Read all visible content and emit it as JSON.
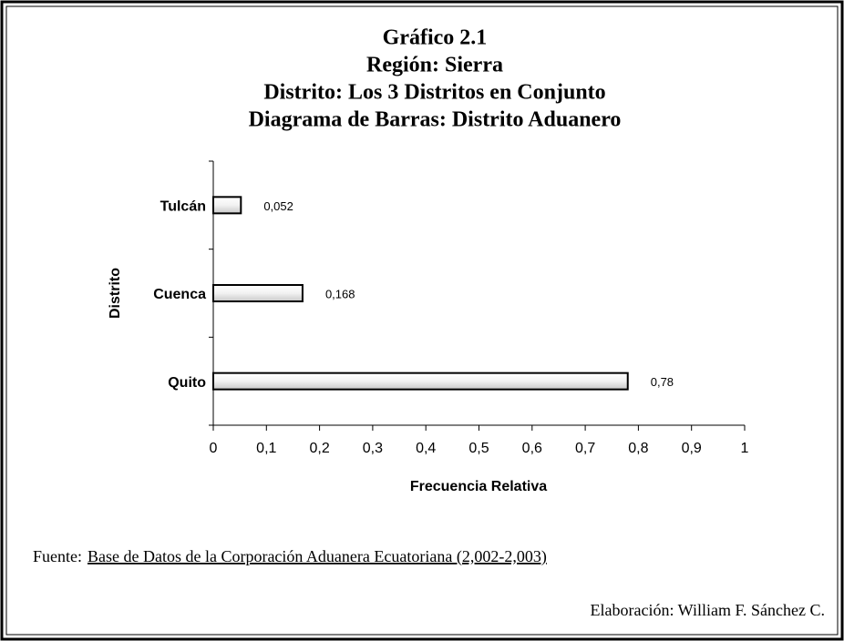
{
  "chart_data": {
    "type": "bar",
    "orientation": "horizontal",
    "title": "Gráfico 2.1",
    "subtitle": [
      "Región: Sierra",
      "Distrito: Los 3 Distritos en Conjunto",
      "Diagrama de Barras: Distrito Aduanero"
    ],
    "categories": [
      "Tulcán",
      "Cuenca",
      "Quito"
    ],
    "values": [
      0.052,
      0.168,
      0.78
    ],
    "value_labels": [
      "0,052",
      "0,168",
      "0,78"
    ],
    "xlim": [
      0,
      1
    ],
    "xticks": [
      0,
      {
        "value": 0.1,
        "label": "0,1"
      },
      {
        "value": 0.2,
        "label": "0,2"
      },
      {
        "value": 0.3,
        "label": "0,3"
      },
      {
        "value": 0.4,
        "label": "0,4"
      },
      {
        "value": 0.5,
        "label": "0,5"
      },
      {
        "value": 0.6,
        "label": "0,6"
      },
      {
        "value": 0.7,
        "label": "0,7"
      },
      {
        "value": 0.8,
        "label": "0,8"
      },
      {
        "value": 0.9,
        "label": "0,9"
      },
      1
    ],
    "xlabel": "Frecuencia Relativa",
    "ylabel": "Distrito",
    "grid": false,
    "source_prefix": "Fuente:",
    "source": "Base de Datos de la Corporación Aduanera Ecuatoriana (2,002-2,003)",
    "credit": "Elaboración: William F. Sánchez C."
  }
}
